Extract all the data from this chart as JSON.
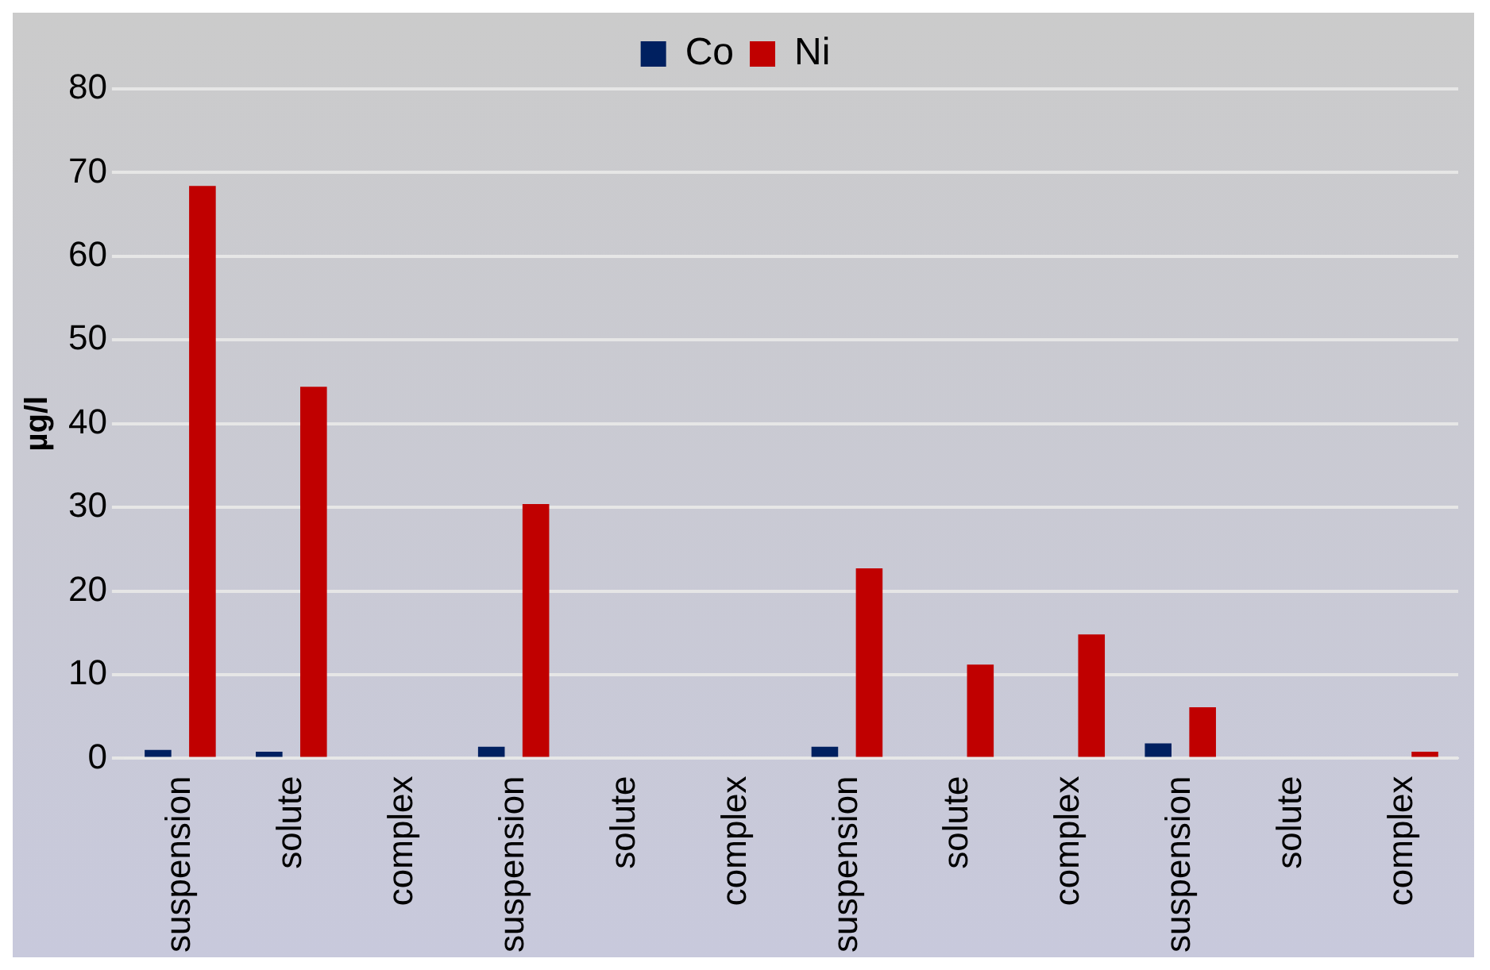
{
  "chart_data": {
    "type": "bar",
    "ylabel": "µg/l",
    "categories": [
      "suspension",
      "solute",
      "complex",
      "suspension",
      "solute",
      "complex",
      "suspension",
      "solute",
      "complex",
      "suspension",
      "solute",
      "complex"
    ],
    "series": [
      {
        "name": "Co",
        "color": "#002060",
        "values": [
          1.0,
          0.8,
          null,
          1.4,
          null,
          null,
          1.4,
          null,
          null,
          1.8,
          null,
          null
        ]
      },
      {
        "name": "Ni",
        "color": "#c00000",
        "values": [
          68.4,
          44.4,
          null,
          30.4,
          null,
          null,
          22.7,
          11.2,
          14.8,
          6.1,
          null,
          0.8
        ]
      }
    ],
    "ylim": [
      0,
      80
    ],
    "yticks": [
      0,
      10,
      20,
      30,
      40,
      50,
      60,
      70,
      80
    ],
    "grid": "y",
    "legend": "top"
  }
}
